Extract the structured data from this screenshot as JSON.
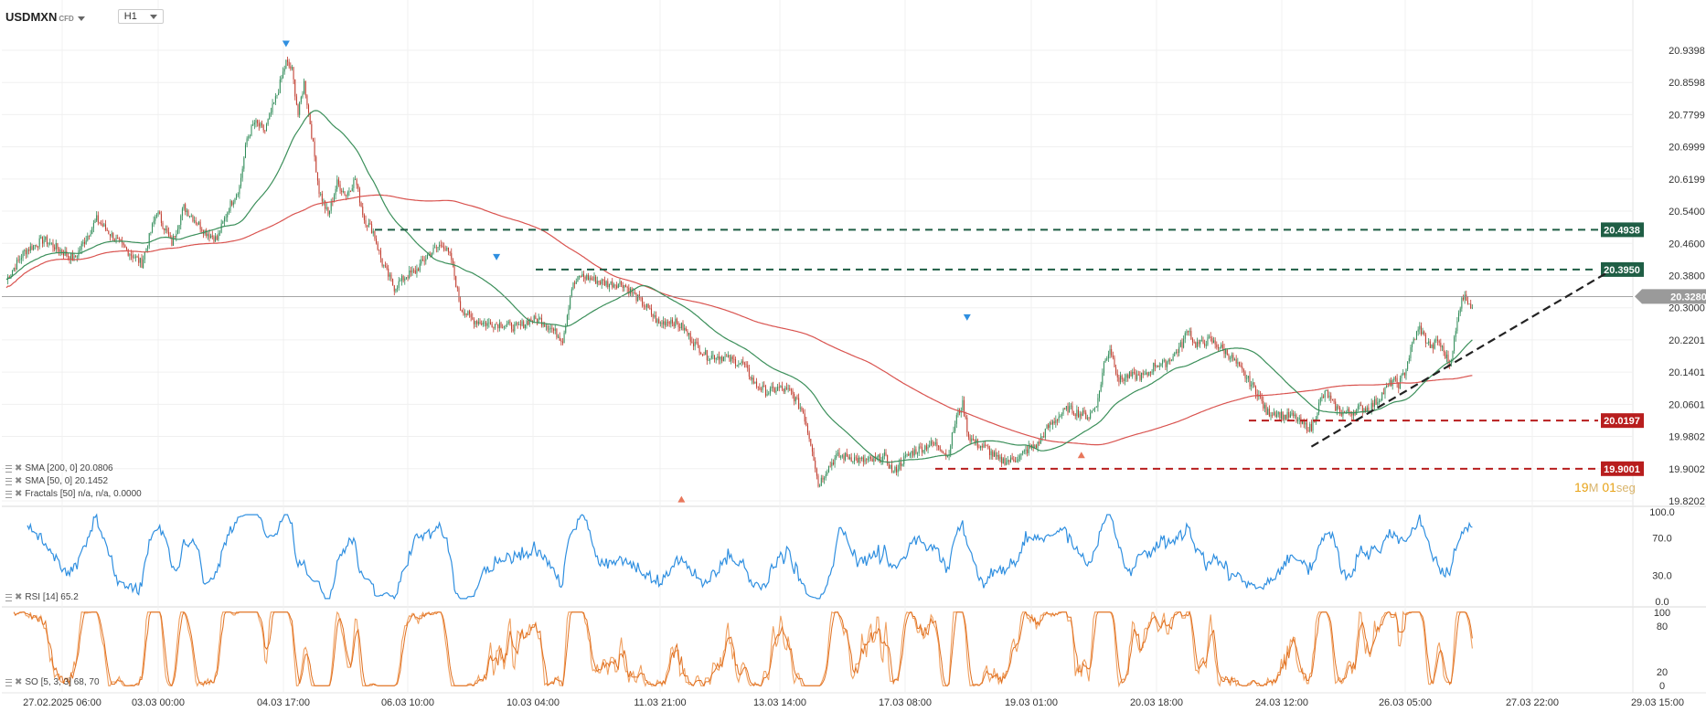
{
  "header": {
    "symbol": "USDMXN",
    "symbol_type": "CFD",
    "timeframe": "H1"
  },
  "indicators": {
    "sma200": {
      "label": "SMA [200, 0] 20.0806",
      "color": "#d9534f"
    },
    "sma50": {
      "label": "SMA [50, 0] 20.1452",
      "color": "#3b8f5a"
    },
    "fractals": {
      "label": "Fractals [50] n/a, n/a, 0.0000"
    },
    "rsi": {
      "label": "RSI [14] 65.2",
      "color": "#2f8fe0"
    },
    "so": {
      "label": "SO [5, 3, 3] 68, 70",
      "color": "#f0a060"
    }
  },
  "countdown": {
    "minutes": "19",
    "minutes_unit": "M",
    "seconds": "01",
    "seconds_unit": "seg"
  },
  "chart_data": {
    "type": "candlestick",
    "symbol": "USDMXN",
    "timeframe": "H1",
    "y_ticks": [
      "20.9398",
      "20.8598",
      "20.7799",
      "20.6999",
      "20.6199",
      "20.5400",
      "20.4600",
      "20.3800",
      "20.3000",
      "20.2201",
      "20.1401",
      "20.0601",
      "19.9802",
      "19.9002",
      "19.8202"
    ],
    "ylim": [
      19.8202,
      20.9398
    ],
    "x_tick_labels": [
      "27.02.2025 06:00",
      "03.03 00:00",
      "04.03 17:00",
      "06.03 10:00",
      "10.03 04:00",
      "11.03 21:00",
      "13.03 14:00",
      "17.03 08:00",
      "19.03 01:00",
      "20.03 18:00",
      "24.03 12:00",
      "26.03 05:00",
      "27.03 22:00",
      "29.03 15:00"
    ],
    "current_price": "20.3280",
    "price_path": [
      [
        0,
        20.37
      ],
      [
        12,
        20.44
      ],
      [
        25,
        20.47
      ],
      [
        45,
        20.42
      ],
      [
        60,
        20.52
      ],
      [
        75,
        20.46
      ],
      [
        90,
        20.41
      ],
      [
        100,
        20.54
      ],
      [
        110,
        20.46
      ],
      [
        118,
        20.55
      ],
      [
        125,
        20.52
      ],
      [
        132,
        20.49
      ],
      [
        140,
        20.47
      ],
      [
        148,
        20.55
      ],
      [
        155,
        20.6
      ],
      [
        160,
        20.72
      ],
      [
        165,
        20.76
      ],
      [
        172,
        20.74
      ],
      [
        180,
        20.83
      ],
      [
        186,
        20.91
      ],
      [
        190,
        20.89
      ],
      [
        194,
        20.78
      ],
      [
        198,
        20.86
      ],
      [
        202,
        20.76
      ],
      [
        208,
        20.59
      ],
      [
        214,
        20.53
      ],
      [
        220,
        20.61
      ],
      [
        226,
        20.58
      ],
      [
        232,
        20.62
      ],
      [
        238,
        20.52
      ],
      [
        244,
        20.49
      ],
      [
        250,
        20.41
      ],
      [
        258,
        20.35
      ],
      [
        266,
        20.38
      ],
      [
        272,
        20.39
      ],
      [
        280,
        20.43
      ],
      [
        290,
        20.46
      ],
      [
        296,
        20.42
      ],
      [
        302,
        20.3
      ],
      [
        310,
        20.27
      ],
      [
        320,
        20.26
      ],
      [
        330,
        20.26
      ],
      [
        340,
        20.25
      ],
      [
        348,
        20.27
      ],
      [
        355,
        20.27
      ],
      [
        362,
        20.25
      ],
      [
        370,
        20.22
      ],
      [
        376,
        20.35
      ],
      [
        382,
        20.38
      ],
      [
        390,
        20.37
      ],
      [
        400,
        20.36
      ],
      [
        410,
        20.36
      ],
      [
        418,
        20.33
      ],
      [
        426,
        20.3
      ],
      [
        434,
        20.26
      ],
      [
        442,
        20.27
      ],
      [
        450,
        20.25
      ],
      [
        458,
        20.21
      ],
      [
        466,
        20.18
      ],
      [
        474,
        20.18
      ],
      [
        482,
        20.17
      ],
      [
        490,
        20.16
      ],
      [
        498,
        20.11
      ],
      [
        506,
        20.09
      ],
      [
        514,
        20.1
      ],
      [
        522,
        20.09
      ],
      [
        530,
        20.04
      ],
      [
        536,
        19.95
      ],
      [
        540,
        19.86
      ],
      [
        546,
        19.9
      ],
      [
        552,
        19.93
      ],
      [
        560,
        19.93
      ],
      [
        568,
        19.92
      ],
      [
        576,
        19.92
      ],
      [
        584,
        19.93
      ],
      [
        590,
        19.89
      ],
      [
        596,
        19.92
      ],
      [
        602,
        19.94
      ],
      [
        608,
        19.95
      ],
      [
        614,
        19.96
      ],
      [
        620,
        19.96
      ],
      [
        626,
        19.93
      ],
      [
        632,
        20.03
      ],
      [
        636,
        20.06
      ],
      [
        640,
        19.98
      ],
      [
        646,
        19.96
      ],
      [
        652,
        19.95
      ],
      [
        660,
        19.92
      ],
      [
        668,
        19.92
      ],
      [
        674,
        19.93
      ],
      [
        680,
        19.95
      ],
      [
        686,
        19.96
      ],
      [
        692,
        20.0
      ],
      [
        700,
        20.03
      ],
      [
        706,
        20.05
      ],
      [
        712,
        20.04
      ],
      [
        720,
        20.03
      ],
      [
        726,
        20.07
      ],
      [
        730,
        20.16
      ],
      [
        734,
        20.2
      ],
      [
        740,
        20.12
      ],
      [
        746,
        20.13
      ],
      [
        752,
        20.13
      ],
      [
        758,
        20.13
      ],
      [
        764,
        20.16
      ],
      [
        770,
        20.16
      ],
      [
        776,
        20.18
      ],
      [
        782,
        20.21
      ],
      [
        786,
        20.25
      ],
      [
        790,
        20.21
      ],
      [
        794,
        20.21
      ],
      [
        800,
        20.22
      ],
      [
        808,
        20.2
      ],
      [
        814,
        20.18
      ],
      [
        820,
        20.15
      ],
      [
        826,
        20.12
      ],
      [
        832,
        20.09
      ],
      [
        838,
        20.04
      ],
      [
        844,
        20.04
      ],
      [
        850,
        20.03
      ],
      [
        856,
        20.03
      ],
      [
        862,
        20.01
      ],
      [
        868,
        20.0
      ],
      [
        874,
        20.07
      ],
      [
        878,
        20.09
      ],
      [
        882,
        20.06
      ],
      [
        888,
        20.04
      ],
      [
        894,
        20.04
      ],
      [
        900,
        20.05
      ],
      [
        906,
        20.05
      ],
      [
        912,
        20.07
      ],
      [
        918,
        20.1
      ],
      [
        922,
        20.12
      ],
      [
        926,
        20.11
      ],
      [
        930,
        20.14
      ],
      [
        936,
        20.22
      ],
      [
        940,
        20.25
      ],
      [
        944,
        20.22
      ],
      [
        948,
        20.2
      ],
      [
        952,
        20.22
      ],
      [
        956,
        20.19
      ],
      [
        960,
        20.16
      ],
      [
        964,
        20.24
      ],
      [
        968,
        20.33
      ],
      [
        972,
        20.32
      ],
      [
        975,
        20.3
      ]
    ],
    "horizontal_levels": [
      {
        "label": "20.4938",
        "value": 20.4938,
        "color": "#1f5e45"
      },
      {
        "label": "20.3950",
        "value": 20.395,
        "color": "#1f5e45"
      },
      {
        "label": "20.0197",
        "value": 20.0197,
        "color": "#b81e1e"
      },
      {
        "label": "19.9001",
        "value": 19.9001,
        "color": "#b81e1e"
      }
    ],
    "trendline": {
      "from": [
        868,
        19.955
      ],
      "to": [
        1066,
        20.39
      ]
    },
    "rsi_panel": {
      "ticks": [
        "100.0",
        "70.0",
        "30.0",
        "0.0"
      ],
      "last": 65.2
    },
    "so_panel": {
      "ticks": [
        "100",
        "80",
        "20",
        "0"
      ],
      "last": [
        68,
        70
      ]
    }
  }
}
